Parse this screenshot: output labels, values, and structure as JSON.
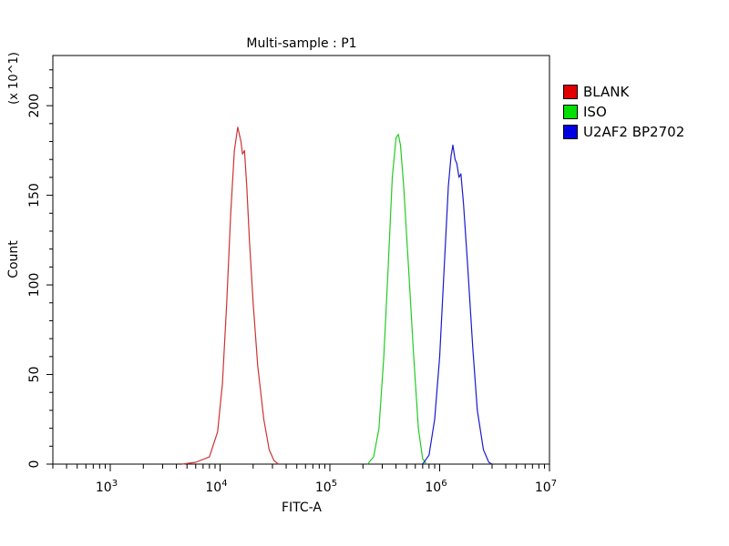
{
  "chart_data": {
    "type": "line",
    "title": "Multi-sample : P1",
    "xlabel": "FITC-A",
    "ylabel": "Count",
    "y_multiplier_label": "(x 10^1)",
    "xscale": "log",
    "xlim": [
      300,
      10000000
    ],
    "ylim": [
      0,
      228
    ],
    "x_ticks": [
      {
        "value": 1000,
        "base": "10",
        "exp": "3"
      },
      {
        "value": 10000,
        "base": "10",
        "exp": "4"
      },
      {
        "value": 100000,
        "base": "10",
        "exp": "5"
      },
      {
        "value": 1000000,
        "base": "10",
        "exp": "6"
      },
      {
        "value": 10000000,
        "base": "10",
        "exp": "7"
      }
    ],
    "y_ticks": [
      {
        "value": 0,
        "label": "0"
      },
      {
        "value": 50,
        "label": "50"
      },
      {
        "value": 100,
        "label": "100"
      },
      {
        "value": 150,
        "label": "150"
      },
      {
        "value": 200,
        "label": "200"
      }
    ],
    "grid": false,
    "legend_position": "right",
    "series": [
      {
        "name": "BLANK",
        "color": "#cc3333",
        "swatch_color": "#e00000",
        "points": [
          [
            4500,
            0
          ],
          [
            6000,
            1
          ],
          [
            8000,
            4
          ],
          [
            9500,
            18
          ],
          [
            10500,
            45
          ],
          [
            11500,
            90
          ],
          [
            12500,
            140
          ],
          [
            13500,
            175
          ],
          [
            14500,
            188
          ],
          [
            15500,
            180
          ],
          [
            16000,
            173
          ],
          [
            16700,
            175
          ],
          [
            17500,
            155
          ],
          [
            18500,
            125
          ],
          [
            20000,
            90
          ],
          [
            22000,
            55
          ],
          [
            25000,
            25
          ],
          [
            28000,
            8
          ],
          [
            31000,
            2
          ],
          [
            34000,
            0
          ]
        ]
      },
      {
        "name": "ISO",
        "color": "#22cc22",
        "swatch_color": "#00e000",
        "points": [
          [
            220000,
            0
          ],
          [
            250000,
            4
          ],
          [
            280000,
            20
          ],
          [
            310000,
            60
          ],
          [
            340000,
            110
          ],
          [
            370000,
            160
          ],
          [
            400000,
            182
          ],
          [
            420000,
            184
          ],
          [
            440000,
            178
          ],
          [
            470000,
            155
          ],
          [
            520000,
            110
          ],
          [
            580000,
            60
          ],
          [
            640000,
            20
          ],
          [
            700000,
            3
          ],
          [
            760000,
            0
          ]
        ]
      },
      {
        "name": "U2AF2 BP2702",
        "color": "#1a1acc",
        "swatch_color": "#0000e0",
        "points": [
          [
            700000,
            0
          ],
          [
            800000,
            5
          ],
          [
            900000,
            25
          ],
          [
            1000000,
            60
          ],
          [
            1100000,
            110
          ],
          [
            1200000,
            155
          ],
          [
            1270000,
            172
          ],
          [
            1320000,
            178
          ],
          [
            1380000,
            170
          ],
          [
            1430000,
            168
          ],
          [
            1500000,
            160
          ],
          [
            1560000,
            162
          ],
          [
            1650000,
            145
          ],
          [
            1800000,
            110
          ],
          [
            2000000,
            65
          ],
          [
            2200000,
            30
          ],
          [
            2500000,
            8
          ],
          [
            2800000,
            1
          ],
          [
            3000000,
            0
          ]
        ]
      }
    ]
  },
  "legend": [
    {
      "label": "BLANK",
      "color": "#e00000"
    },
    {
      "label": "ISO",
      "color": "#00e000"
    },
    {
      "label": "U2AF2 BP2702",
      "color": "#0000e0"
    }
  ]
}
